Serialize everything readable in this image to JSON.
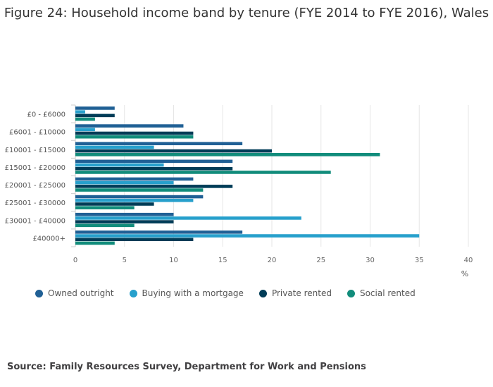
{
  "chart_data": {
    "type": "bar",
    "orientation": "horizontal",
    "title": "Figure 24: Household income band by tenure (FYE 2014 to FYE 2016), Wales",
    "categories": [
      "£0 - £6000",
      "£6001 - £10000",
      "£10001 - £15000",
      "£15001 - £20000",
      "£20001 - £25000",
      "£25001 - £30000",
      "£30001 - £40000",
      "£40000+"
    ],
    "series": [
      {
        "name": "Owned outright",
        "color": "#206095",
        "values": [
          4,
          11,
          17,
          16,
          12,
          13,
          10,
          17
        ]
      },
      {
        "name": "Buying with a mortgage",
        "color": "#27a0cc",
        "values": [
          1,
          2,
          8,
          9,
          10,
          12,
          23,
          35
        ]
      },
      {
        "name": "Private rented",
        "color": "#003c57",
        "values": [
          4,
          12,
          20,
          16,
          16,
          8,
          10,
          12
        ]
      },
      {
        "name": "Social rented",
        "color": "#118c7b",
        "values": [
          2,
          12,
          31,
          26,
          13,
          6,
          6,
          4
        ]
      }
    ],
    "xlabel": "%",
    "xlim": [
      0,
      40
    ],
    "xticks": [
      0,
      5,
      10,
      15,
      20,
      25,
      30,
      35,
      40
    ],
    "grid": true,
    "legend_position": "bottom"
  },
  "source": "Source: Family Resources Survey, Department for Work and Pensions"
}
